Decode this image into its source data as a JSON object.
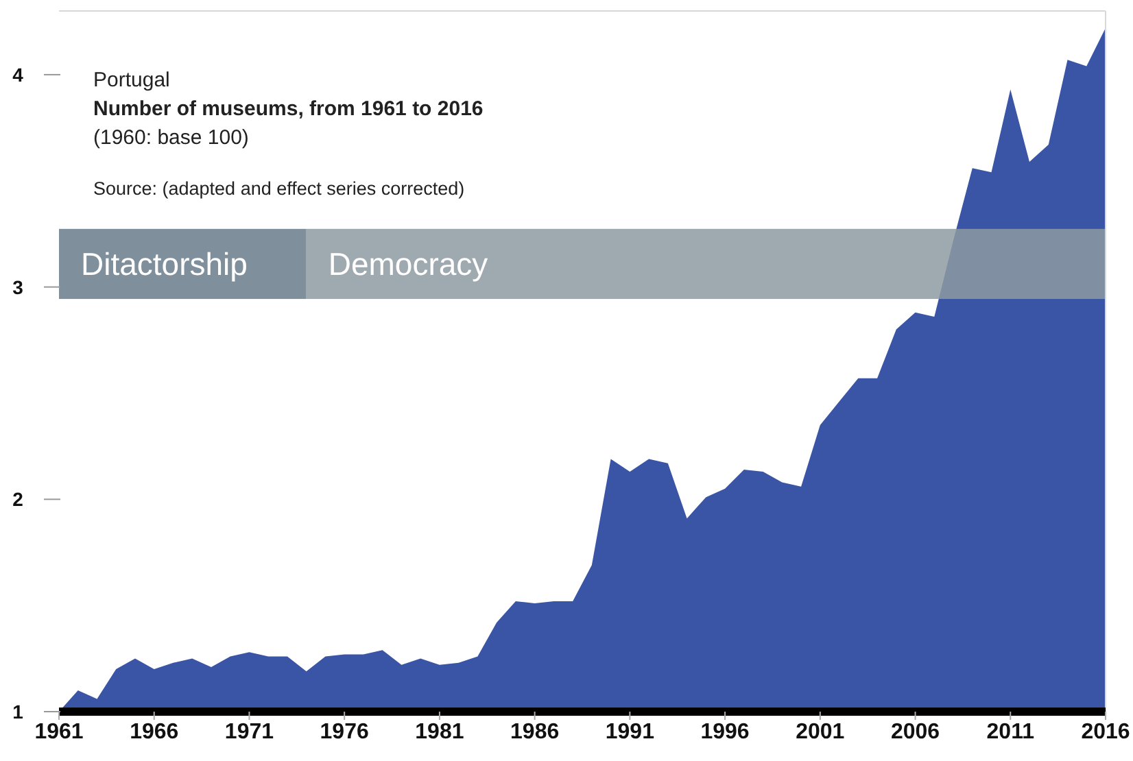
{
  "chart_data": {
    "type": "area",
    "title": "Number of museums, from 1961 to 2016",
    "subtitle": "(1960: base 100)",
    "annotations": [
      "Portugal",
      "Source: (adapted and effect series corrected)"
    ],
    "x": [
      1961,
      1962,
      1963,
      1964,
      1965,
      1966,
      1967,
      1968,
      1969,
      1970,
      1971,
      1972,
      1973,
      1974,
      1975,
      1976,
      1977,
      1978,
      1979,
      1980,
      1981,
      1982,
      1983,
      1984,
      1985,
      1986,
      1987,
      1988,
      1989,
      1990,
      1991,
      1992,
      1993,
      1994,
      1995,
      1996,
      1997,
      1998,
      1999,
      2000,
      2001,
      2002,
      2003,
      2004,
      2005,
      2006,
      2007,
      2008,
      2009,
      2010,
      2011,
      2012,
      2013,
      2014,
      2015,
      2016
    ],
    "series": [
      {
        "color": "#3a55a5",
        "values": [
          1.0,
          1.1,
          1.06,
          1.2,
          1.25,
          1.2,
          1.23,
          1.25,
          1.21,
          1.26,
          1.28,
          1.26,
          1.26,
          1.19,
          1.26,
          1.27,
          1.27,
          1.29,
          1.22,
          1.25,
          1.22,
          1.23,
          1.26,
          1.42,
          1.52,
          1.51,
          1.52,
          1.52,
          1.69,
          2.19,
          2.13,
          2.19,
          2.17,
          1.91,
          2.01,
          2.05,
          2.14,
          2.13,
          2.08,
          2.06,
          2.35,
          2.46,
          2.57,
          2.57,
          2.8,
          2.88,
          2.86,
          3.22,
          3.56,
          3.54,
          3.93,
          3.59,
          3.67,
          4.07,
          4.04,
          4.22
        ]
      }
    ],
    "xlim": [
      1961,
      2016
    ],
    "xticks": [
      1961,
      1966,
      1971,
      1976,
      1981,
      1986,
      1991,
      1996,
      2001,
      2006,
      2011,
      2016
    ],
    "ylim": [
      1,
      4.3
    ],
    "yticks": [
      1,
      2,
      3,
      4
    ],
    "bands": [
      {
        "axis": "x",
        "from": 1961,
        "to": 1974,
        "label": "Ditactorship",
        "color": "#687b89"
      },
      {
        "axis": "x",
        "from": 1974,
        "to": 2016,
        "label": "Democracy",
        "color": "#8e9aa2"
      }
    ]
  }
}
